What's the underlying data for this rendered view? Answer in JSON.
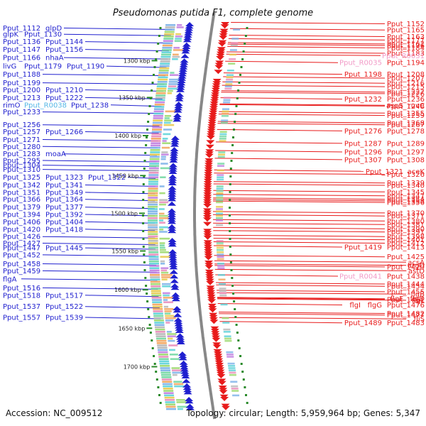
{
  "title": "Pseudomonas putida F1, complete genome",
  "footer": {
    "accession": "Accession: NC_009512",
    "topology": "Topology: circular; Length: 5,959,964 bp; Genes: 5,347"
  },
  "colors": {
    "forward": "#1f1fcf",
    "reverse": "#e81b1b",
    "rna_reverse": "#f29ac7",
    "rna_forward": "#55b7e6",
    "axis": "#888888",
    "tick": "#2a8a2a"
  },
  "scale_ticks": [
    {
      "label": "1300 kbp",
      "pos": 0.105
    },
    {
      "label": "1350 kbp",
      "pos": 0.2
    },
    {
      "label": "1400 kbp",
      "pos": 0.298
    },
    {
      "label": "1450 kbp",
      "pos": 0.401
    },
    {
      "label": "1500 kbp",
      "pos": 0.498
    },
    {
      "label": "1550 kbp",
      "pos": 0.595
    },
    {
      "label": "1600 kbp",
      "pos": 0.695
    },
    {
      "label": "1650 kbp",
      "pos": 0.794
    },
    {
      "label": "1700 kbp",
      "pos": 0.893
    }
  ],
  "left_labels": [
    {
      "text": "Pput_1112",
      "pos": 0.021
    },
    {
      "text": "glpD",
      "pos": 0.021
    },
    {
      "text": "glpK",
      "pos": 0.037
    },
    {
      "text": "Pput_1130",
      "pos": 0.037
    },
    {
      "text": "Pput_1136",
      "pos": 0.056
    },
    {
      "text": "Pput_1144",
      "pos": 0.056
    },
    {
      "text": "Pput_1147",
      "pos": 0.076
    },
    {
      "text": "Pput_1156",
      "pos": 0.076
    },
    {
      "text": "Pput_1166",
      "pos": 0.097
    },
    {
      "text": "nhaA",
      "pos": 0.097
    },
    {
      "text": "livG",
      "pos": 0.119
    },
    {
      "text": "Pput_1179",
      "pos": 0.119
    },
    {
      "text": "Pput_1190",
      "pos": 0.119
    },
    {
      "text": "Pput_1188",
      "pos": 0.14
    },
    {
      "text": "Pput_1199",
      "pos": 0.162
    },
    {
      "text": "Pput_1200",
      "pos": 0.18
    },
    {
      "text": "Pput_1210",
      "pos": 0.18
    },
    {
      "text": "Pput_1213",
      "pos": 0.2
    },
    {
      "text": "Pput_1222",
      "pos": 0.2
    },
    {
      "text": "rimO",
      "pos": 0.219
    },
    {
      "text": "Pput_R0038",
      "pos": 0.219
    },
    {
      "text": "Pput_1238",
      "pos": 0.219
    },
    {
      "text": "Pput_1233",
      "pos": 0.237
    },
    {
      "text": "Pput_1256",
      "pos": 0.27
    },
    {
      "text": "Pput_1257",
      "pos": 0.288
    },
    {
      "text": "Pput_1266",
      "pos": 0.288
    },
    {
      "text": "Pput_1271",
      "pos": 0.308
    },
    {
      "text": "Pput_1280",
      "pos": 0.326
    },
    {
      "text": "Pput_1283",
      "pos": 0.345
    },
    {
      "text": "moaA",
      "pos": 0.345
    },
    {
      "text": "Pput_1295",
      "pos": 0.362
    },
    {
      "text": "Pput_1304",
      "pos": 0.374
    },
    {
      "text": "Pput_1310",
      "pos": 0.385
    },
    {
      "text": "Pput_1325",
      "pos": 0.405
    },
    {
      "text": "Pput_1323",
      "pos": 0.405
    },
    {
      "text": "Pput_1322",
      "pos": 0.405
    },
    {
      "text": "Pput_1342",
      "pos": 0.425
    },
    {
      "text": "Pput_1341",
      "pos": 0.425
    },
    {
      "text": "Pput_1351",
      "pos": 0.444
    },
    {
      "text": "Pput_1349",
      "pos": 0.444
    },
    {
      "text": "Pput_1366",
      "pos": 0.462
    },
    {
      "text": "Pput_1364",
      "pos": 0.462
    },
    {
      "text": "Pput_1379",
      "pos": 0.482
    },
    {
      "text": "Pput_1377",
      "pos": 0.482
    },
    {
      "text": "Pput_1394",
      "pos": 0.501
    },
    {
      "text": "Pput_1392",
      "pos": 0.501
    },
    {
      "text": "Pput_1406",
      "pos": 0.52
    },
    {
      "text": "Pput_1404",
      "pos": 0.52
    },
    {
      "text": "Pput_1420",
      "pos": 0.539
    },
    {
      "text": "Pput_1418",
      "pos": 0.539
    },
    {
      "text": "Pput_1426",
      "pos": 0.558
    },
    {
      "text": "Pput_1427",
      "pos": 0.575
    },
    {
      "text": "Pput_1447",
      "pos": 0.587
    },
    {
      "text": "Pput_1445",
      "pos": 0.587
    },
    {
      "text": "Pput_1452",
      "pos": 0.605
    },
    {
      "text": "Pput_1458",
      "pos": 0.628
    },
    {
      "text": "Pput_1459",
      "pos": 0.646
    },
    {
      "text": "flgA",
      "pos": 0.667
    },
    {
      "text": "Pput_1516",
      "pos": 0.69
    },
    {
      "text": "Pput_1518",
      "pos": 0.709
    },
    {
      "text": "Pput_1517",
      "pos": 0.709
    },
    {
      "text": "Pput_1537",
      "pos": 0.738
    },
    {
      "text": "Pput_1522",
      "pos": 0.738
    },
    {
      "text": "Pput_1557",
      "pos": 0.766
    },
    {
      "text": "Pput_1539",
      "pos": 0.766
    }
  ],
  "right_labels": [
    {
      "text": "Pput_1152",
      "pos": 0.01
    },
    {
      "text": "Pput_1165",
      "pos": 0.026
    },
    {
      "text": "Pput_1163",
      "pos": 0.043
    },
    {
      "text": "Pput_1177",
      "pos": 0.052
    },
    {
      "text": "Pput_1167",
      "pos": 0.062
    },
    {
      "text": "Pput_1176",
      "pos": 0.066
    },
    {
      "text": "Pput_1184",
      "pos": 0.072
    },
    {
      "text": "Pput_1183",
      "pos": 0.086
    },
    {
      "text": "Pput_R0031",
      "pos": 0.092
    },
    {
      "text": "Pput_R0035",
      "pos": 0.11
    },
    {
      "text": "Pput_1194",
      "pos": 0.11
    },
    {
      "text": "Pput_1198",
      "pos": 0.14
    },
    {
      "text": "Pput_1208",
      "pos": 0.14
    },
    {
      "text": "Pput_1207",
      "pos": 0.15
    },
    {
      "text": "Pput_1216",
      "pos": 0.163
    },
    {
      "text": "Pput_1215",
      "pos": 0.172
    },
    {
      "text": "Pput_1227",
      "pos": 0.186
    },
    {
      "text": "Pput_1226",
      "pos": 0.19
    },
    {
      "text": "Pput_1232",
      "pos": 0.204
    },
    {
      "text": "Pput_1236",
      "pos": 0.204
    },
    {
      "text": "aspS",
      "pos": 0.22
    },
    {
      "text": "ruvC",
      "pos": 0.22
    },
    {
      "text": "Pput_1248",
      "pos": 0.222
    },
    {
      "text": "Pput_1255",
      "pos": 0.24
    },
    {
      "text": "Pput_1259",
      "pos": 0.246
    },
    {
      "text": "Pput_1267",
      "pos": 0.27
    },
    {
      "text": "Pput_1268",
      "pos": 0.265
    },
    {
      "text": "Pput_1276",
      "pos": 0.286
    },
    {
      "text": "Pput_1278",
      "pos": 0.286
    },
    {
      "text": "Pput_1287",
      "pos": 0.318
    },
    {
      "text": "Pput_1289",
      "pos": 0.318
    },
    {
      "text": "Pput_1296",
      "pos": 0.34
    },
    {
      "text": "Pput_1297",
      "pos": 0.34
    },
    {
      "text": "Pput_1307",
      "pos": 0.36
    },
    {
      "text": "Pput_1308",
      "pos": 0.36
    },
    {
      "text": "Pput_1321",
      "pos": 0.39
    },
    {
      "text": "aceK",
      "pos": 0.39
    },
    {
      "text": "Pput_1326",
      "pos": 0.398
    },
    {
      "text": "Pput_1339",
      "pos": 0.42
    },
    {
      "text": "Pput_1340",
      "pos": 0.426
    },
    {
      "text": "Pput_1345",
      "pos": 0.443
    },
    {
      "text": "Pput_1347",
      "pos": 0.453
    },
    {
      "text": "Pput_1358",
      "pos": 0.466
    },
    {
      "text": "Pput_1354",
      "pos": 0.462
    },
    {
      "text": "Pput_1356",
      "pos": 0.47
    },
    {
      "text": "Pput_1370",
      "pos": 0.497
    },
    {
      "text": "Pput_1371",
      "pos": 0.505
    },
    {
      "text": "Pput_1380",
      "pos": 0.518
    },
    {
      "text": "Pput_1381",
      "pos": 0.527
    },
    {
      "text": "Pput_1390",
      "pos": 0.538
    },
    {
      "text": "Pput_1391",
      "pos": 0.546
    },
    {
      "text": "Pput_1398",
      "pos": 0.558
    },
    {
      "text": "Pput_1401",
      "pos": 0.566
    },
    {
      "text": "Pput_1419",
      "pos": 0.585
    },
    {
      "text": "Pput_1412",
      "pos": 0.575
    },
    {
      "text": "Pput_1413",
      "pos": 0.585
    },
    {
      "text": "Pput_1425",
      "pos": 0.61
    },
    {
      "text": "acsA",
      "pos": 0.624
    },
    {
      "text": "argD",
      "pos": 0.632
    },
    {
      "text": "Pput_1429",
      "pos": 0.636
    },
    {
      "text": "astD",
      "pos": 0.646
    },
    {
      "text": "Pput_R0041",
      "pos": 0.66
    },
    {
      "text": "Pput_1438",
      "pos": 0.66
    },
    {
      "text": "Pput_1444",
      "pos": 0.68
    },
    {
      "text": "Pput_1454",
      "pos": 0.686
    },
    {
      "text": "Pput_1455",
      "pos": 0.7
    },
    {
      "text": "flgB",
      "pos": 0.706
    },
    {
      "text": "Pput_1461",
      "pos": 0.72
    },
    {
      "text": "flgL",
      "pos": 0.722
    },
    {
      "text": "flgF",
      "pos": 0.718
    },
    {
      "text": "flgD",
      "pos": 0.718
    },
    {
      "text": "flgI",
      "pos": 0.734
    },
    {
      "text": "flgG",
      "pos": 0.734
    },
    {
      "text": "Pput_1476",
      "pos": 0.734
    },
    {
      "text": "Pput_1477",
      "pos": 0.76
    },
    {
      "text": "Pput_1482",
      "pos": 0.756
    },
    {
      "text": "fliS",
      "pos": 0.77
    },
    {
      "text": "Pput_1489",
      "pos": 0.78
    },
    {
      "text": "Pput_1483",
      "pos": 0.78
    }
  ]
}
